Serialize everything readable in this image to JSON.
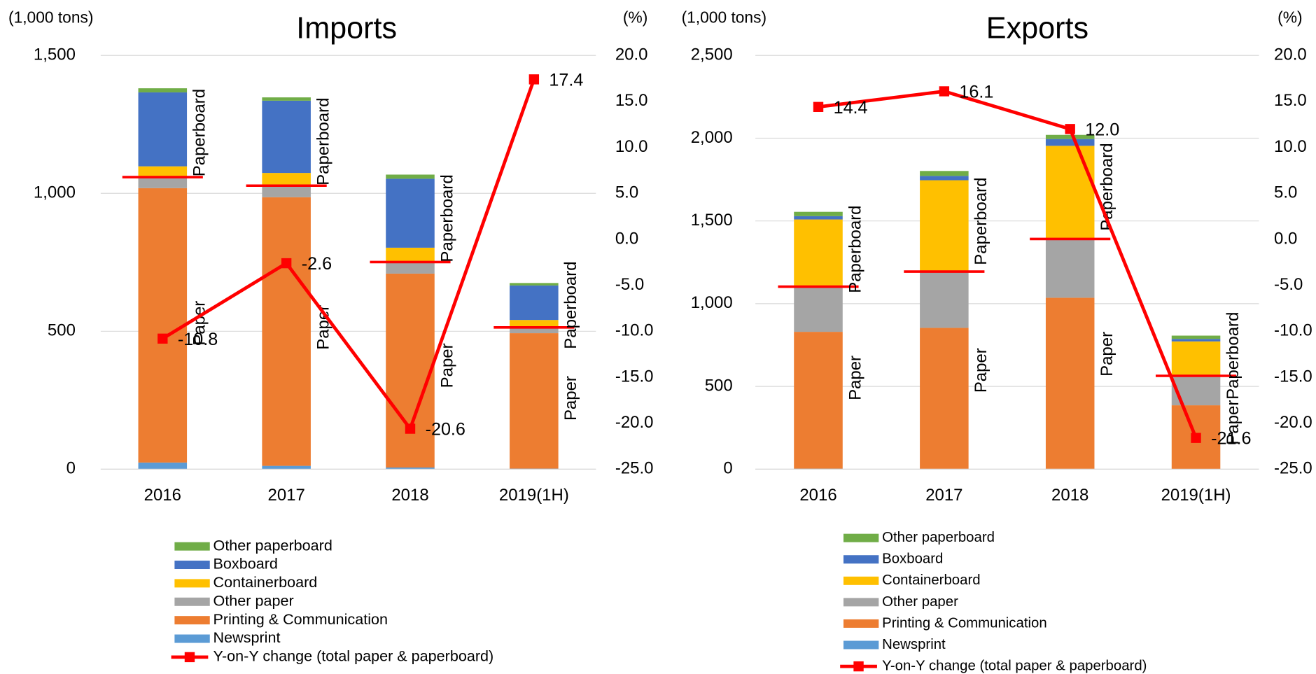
{
  "chart_data": [
    {
      "type": "bar",
      "stacked": true,
      "title": "Imports",
      "y_label": "(1,000 tons)",
      "y2_label": "(%)",
      "categories": [
        "2016",
        "2017",
        "2018",
        "2019(1H)"
      ],
      "series": [
        {
          "name": "Newsprint",
          "color": "#5b9bd5",
          "group": "Paper",
          "values": [
            24,
            12,
            6,
            2
          ]
        },
        {
          "name": "Printing & Communication",
          "color": "#ed7d31",
          "group": "Paper",
          "values": [
            995,
            974,
            703,
            491
          ]
        },
        {
          "name": "Other paper",
          "color": "#a5a5a5",
          "group": "Paper",
          "values": [
            40,
            42,
            42,
            21
          ]
        },
        {
          "name": "Containerboard",
          "color": "#ffc000",
          "group": "Paperboard",
          "values": [
            39,
            46,
            52,
            27
          ]
        },
        {
          "name": "Boxboard",
          "color": "#4472c4",
          "group": "Paperboard",
          "values": [
            268,
            262,
            250,
            125
          ]
        },
        {
          "name": "Other paperboard",
          "color": "#70ad47",
          "group": "Paperboard",
          "values": [
            15,
            12,
            15,
            9
          ]
        },
        {
          "name": "Y-on-Y change (total paper & paperboard)",
          "type": "line",
          "axis": "y2",
          "color": "#ff0000",
          "label_color": "#ff0000",
          "values": [
            -10.8,
            -2.6,
            -20.6,
            17.4
          ],
          "value_labels": [
            "-10.8",
            "-2.6",
            "-20.6",
            "17.4"
          ]
        }
      ],
      "ylim": [
        0,
        1500
      ],
      "yticks": [
        0,
        500,
        {
          "value": 1000,
          "label": "1,000"
        },
        {
          "value": 1500,
          "label": "1,500"
        }
      ],
      "y2lim": [
        -25,
        20
      ],
      "y2ticks": [
        {
          "value": -25,
          "label": "-25.0"
        },
        {
          "value": -20,
          "label": "-20.0"
        },
        {
          "value": -15,
          "label": "-15.0"
        },
        {
          "value": -10,
          "label": "-10.0"
        },
        {
          "value": -5,
          "label": "-5.0"
        },
        {
          "value": 0,
          "label": "0.0"
        },
        {
          "value": 5,
          "label": "5.0"
        },
        {
          "value": 10,
          "label": "10.0"
        },
        {
          "value": 15,
          "label": "15.0"
        },
        {
          "value": 20,
          "label": "20.0"
        }
      ],
      "grid": true,
      "legend": "bottom"
    },
    {
      "type": "bar",
      "stacked": true,
      "title": "Exports",
      "y_label": "(1,000 tons)",
      "y2_label": "(%)",
      "categories": [
        "2016",
        "2017",
        "2018",
        "2019(1H)"
      ],
      "series": [
        {
          "name": "Newsprint",
          "color": "#5b9bd5",
          "group": "Paper",
          "values": [
            3,
            2,
            2,
            1
          ]
        },
        {
          "name": "Printing & Communication",
          "color": "#ed7d31",
          "group": "Paper",
          "values": [
            827,
            852,
            1034,
            385
          ]
        },
        {
          "name": "Other paper",
          "color": "#a5a5a5",
          "group": "Paper",
          "values": [
            273,
            340,
            355,
            178
          ]
        },
        {
          "name": "Containerboard",
          "color": "#ffc000",
          "group": "Paperboard",
          "values": [
            406,
            552,
            563,
            208
          ]
        },
        {
          "name": "Boxboard",
          "color": "#4472c4",
          "group": "Paperboard",
          "values": [
            20,
            26,
            41,
            15
          ]
        },
        {
          "name": "Other paperboard",
          "color": "#70ad47",
          "group": "Paperboard",
          "values": [
            26,
            30,
            25,
            20
          ]
        },
        {
          "name": "Y-on-Y change (total paper & paperboard)",
          "type": "line",
          "axis": "y2",
          "color": "#ff0000",
          "label_color": "#000000",
          "values": [
            14.4,
            16.1,
            12.0,
            -21.6
          ],
          "value_labels": [
            "14.4",
            "16.1",
            "12.0",
            "-21.6"
          ]
        }
      ],
      "ylim": [
        0,
        2500
      ],
      "yticks": [
        0,
        500,
        {
          "value": 1000,
          "label": "1,000"
        },
        {
          "value": 1500,
          "label": "1,500"
        },
        {
          "value": 2000,
          "label": "2,000"
        },
        {
          "value": 2500,
          "label": "2,500"
        }
      ],
      "y2lim": [
        -25,
        20
      ],
      "y2ticks": [
        {
          "value": -25,
          "label": "-25.0"
        },
        {
          "value": -20,
          "label": "-20.0"
        },
        {
          "value": -15,
          "label": "-15.0"
        },
        {
          "value": -10,
          "label": "-10.0"
        },
        {
          "value": -5,
          "label": "-5.0"
        },
        {
          "value": 0,
          "label": "0.0"
        },
        {
          "value": 5,
          "label": "5.0"
        },
        {
          "value": 10,
          "label": "10.0"
        },
        {
          "value": 15,
          "label": "15.0"
        },
        {
          "value": 20,
          "label": "20.0"
        }
      ],
      "grid": true,
      "legend": "bottom"
    }
  ]
}
